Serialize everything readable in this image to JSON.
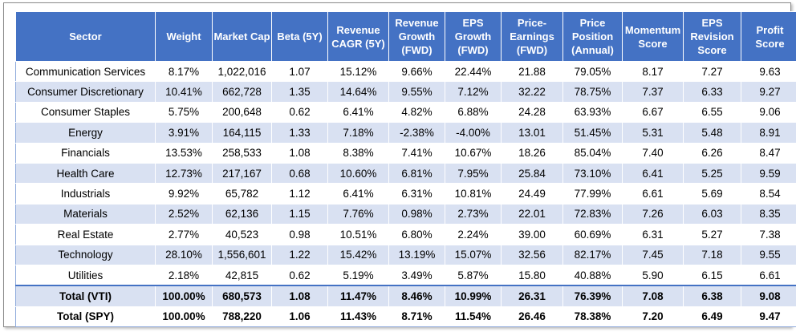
{
  "table": {
    "headers": [
      "Sector",
      "Weight",
      "Market Cap",
      "Beta (5Y)",
      "Revenue CAGR (5Y)",
      "Revenue Growth (FWD)",
      "EPS Growth (FWD)",
      "Price-Earnings (FWD)",
      "Price Position (Annual)",
      "Momentum Score",
      "EPS Revision Score",
      "Profit Score"
    ],
    "rows": [
      [
        "Communication Services",
        "8.17%",
        "1,022,016",
        "1.07",
        "15.12%",
        "9.66%",
        "22.44%",
        "21.88",
        "79.05%",
        "8.17",
        "7.27",
        "9.63"
      ],
      [
        "Consumer Discretionary",
        "10.41%",
        "662,728",
        "1.35",
        "14.64%",
        "9.55%",
        "7.12%",
        "32.22",
        "78.75%",
        "7.37",
        "6.33",
        "9.27"
      ],
      [
        "Consumer Staples",
        "5.75%",
        "200,648",
        "0.62",
        "6.41%",
        "4.82%",
        "6.88%",
        "24.28",
        "63.93%",
        "6.67",
        "6.55",
        "9.06"
      ],
      [
        "Energy",
        "3.91%",
        "164,115",
        "1.33",
        "7.18%",
        "-2.38%",
        "-4.00%",
        "13.01",
        "51.45%",
        "5.31",
        "5.48",
        "8.91"
      ],
      [
        "Financials",
        "13.53%",
        "258,533",
        "1.08",
        "8.38%",
        "7.41%",
        "10.67%",
        "18.26",
        "85.04%",
        "7.40",
        "6.26",
        "8.47"
      ],
      [
        "Health Care",
        "12.73%",
        "217,167",
        "0.68",
        "10.60%",
        "6.81%",
        "7.95%",
        "25.84",
        "73.10%",
        "6.41",
        "5.25",
        "9.59"
      ],
      [
        "Industrials",
        "9.92%",
        "65,782",
        "1.12",
        "6.41%",
        "6.31%",
        "10.81%",
        "24.49",
        "77.99%",
        "6.61",
        "5.69",
        "8.54"
      ],
      [
        "Materials",
        "2.52%",
        "62,136",
        "1.15",
        "7.76%",
        "0.98%",
        "2.73%",
        "22.01",
        "72.83%",
        "7.26",
        "6.03",
        "8.35"
      ],
      [
        "Real Estate",
        "2.77%",
        "40,523",
        "0.98",
        "10.51%",
        "6.80%",
        "2.24%",
        "39.00",
        "60.69%",
        "6.31",
        "5.27",
        "7.38"
      ],
      [
        "Technology",
        "28.10%",
        "1,556,601",
        "1.22",
        "15.42%",
        "13.19%",
        "15.07%",
        "32.56",
        "82.17%",
        "7.45",
        "7.18",
        "9.55"
      ],
      [
        "Utilities",
        "2.18%",
        "42,815",
        "0.62",
        "5.19%",
        "3.49%",
        "5.87%",
        "15.80",
        "40.88%",
        "5.90",
        "6.15",
        "6.61"
      ]
    ],
    "totals": [
      [
        "Total (VTI)",
        "100.00%",
        "680,573",
        "1.08",
        "11.47%",
        "8.46%",
        "10.99%",
        "26.31",
        "76.39%",
        "7.08",
        "6.38",
        "9.08"
      ],
      [
        "Total (SPY)",
        "100.00%",
        "788,220",
        "1.06",
        "11.43%",
        "8.71%",
        "11.54%",
        "26.46",
        "78.38%",
        "7.20",
        "6.49",
        "9.47"
      ]
    ]
  }
}
